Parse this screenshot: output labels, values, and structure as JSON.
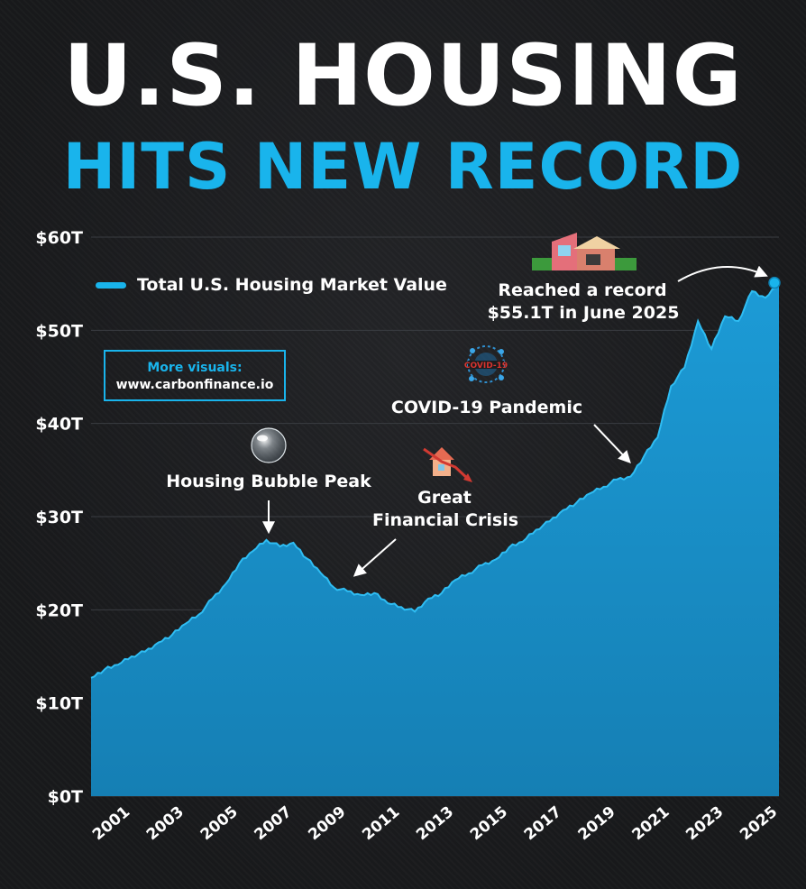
{
  "title": {
    "line1": "U.S. HOUSING",
    "line2": "HITS NEW RECORD"
  },
  "colors": {
    "accent": "#19b4ec",
    "area_fill": "#1a8fc6",
    "background": "#1b1c1e",
    "text": "#ffffff"
  },
  "promo": {
    "heading": "More visuals:",
    "url": "www.carbonfinance.io"
  },
  "chart_data": {
    "type": "area",
    "title": "",
    "xlabel": "",
    "ylabel": "",
    "ylim": [
      0,
      60
    ],
    "xlim": [
      2000.0,
      2025.5
    ],
    "y_ticks": [
      0,
      10,
      20,
      30,
      40,
      50,
      60
    ],
    "y_tick_labels": [
      "$0T",
      "$10T",
      "$20T",
      "$30T",
      "$40T",
      "$50T",
      "$60T"
    ],
    "x_ticks": [
      2001,
      2003,
      2005,
      2007,
      2009,
      2011,
      2013,
      2015,
      2017,
      2019,
      2021,
      2023,
      2025
    ],
    "x_tick_labels": [
      "2001",
      "2003",
      "2005",
      "2007",
      "2009",
      "2011",
      "2013",
      "2015",
      "2017",
      "2019",
      "2021",
      "2023",
      "2025"
    ],
    "grid": true,
    "legend_position": "top-left",
    "series": [
      {
        "name": "Total U.S. Housing Market Value",
        "unit": "$T",
        "x": [
          2000.0,
          2000.5,
          2001.0,
          2001.5,
          2002.0,
          2002.5,
          2003.0,
          2003.5,
          2004.0,
          2004.5,
          2005.0,
          2005.5,
          2006.0,
          2006.5,
          2007.0,
          2007.5,
          2008.0,
          2008.5,
          2009.0,
          2009.5,
          2010.0,
          2010.5,
          2011.0,
          2011.5,
          2012.0,
          2012.5,
          2013.0,
          2013.5,
          2014.0,
          2014.5,
          2015.0,
          2015.5,
          2016.0,
          2016.5,
          2017.0,
          2017.5,
          2018.0,
          2018.5,
          2019.0,
          2019.5,
          2020.0,
          2020.5,
          2021.0,
          2021.5,
          2022.0,
          2022.5,
          2023.0,
          2023.5,
          2024.0,
          2024.5,
          2025.0,
          2025.5
        ],
        "values": [
          12.7,
          13.6,
          14.1,
          15.0,
          15.5,
          16.5,
          17.3,
          18.5,
          19.5,
          21.2,
          22.8,
          25.0,
          26.3,
          27.5,
          26.8,
          27.2,
          25.5,
          24.0,
          22.4,
          22.0,
          21.6,
          21.8,
          20.7,
          20.3,
          19.8,
          21.2,
          21.8,
          23.2,
          23.9,
          24.8,
          25.4,
          26.7,
          27.3,
          28.6,
          29.5,
          30.7,
          31.5,
          32.5,
          33.2,
          34.0,
          34.3,
          36.5,
          38.5,
          44.0,
          46.0,
          51.0,
          48.0,
          51.5,
          51.0,
          54.2,
          53.5,
          55.1
        ]
      }
    ],
    "annotations": [
      {
        "text": "Housing Bubble Peak"
      },
      {
        "text": "Great"
      },
      {
        "text": "Financial Crisis"
      },
      {
        "text": "COVID-19 Pandemic"
      },
      {
        "text": "Reached a record"
      },
      {
        "text": "$55.1T in June 2025"
      }
    ]
  }
}
